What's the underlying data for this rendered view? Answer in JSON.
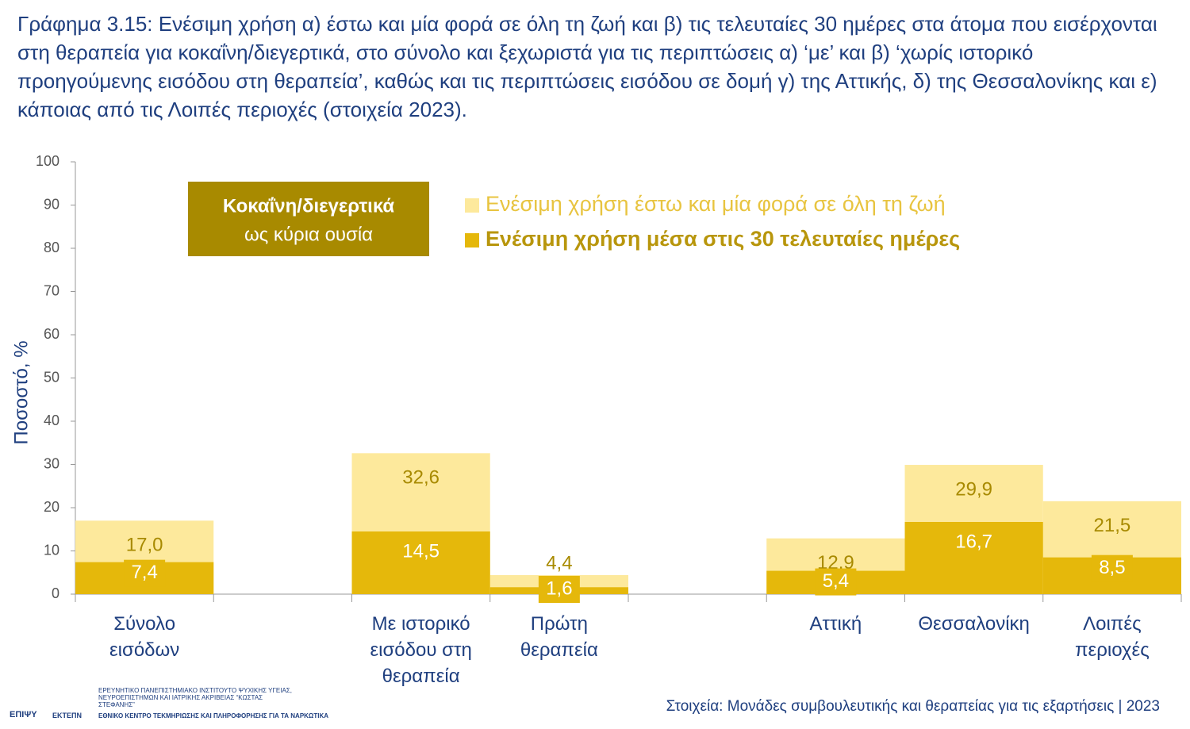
{
  "chart_data": {
    "type": "bar",
    "title": "Γράφημα 3.15: Ενέσιμη χρήση α) έστω και μία φορά σε όλη τη ζωή και β) τις τελευταίες 30 ημέρες στα άτομα που εισέρχονται στη θεραπεία για κοκαΐνη/διεγερτικά, στο σύνολο και ξεχωριστά για τις περιπτώσεις α) ‘με’ και β) ‘χωρίς ιστορικό προηγούμενης εισόδου στη θεραπεία’, καθώς και τις περιπτώσεις εισόδου σε δομή γ) της Αττικής, δ) της Θεσσαλονίκης και ε) κάποιας από τις Λοιπές περιοχές (στοιχεία 2023).",
    "ylabel": "Ποσοστό, %",
    "annotation": {
      "title": "Κοκαΐνη/διεγερτικά",
      "subtitle": "ως κύρια ουσία"
    },
    "categories": [
      "Σύνολο εισόδων",
      null,
      "Με ιστορικό εισόδου στη θεραπεία",
      "Πρώτη θεραπεία",
      null,
      "Αττική",
      "Θεσσαλονίκη",
      "Λοιπές περιοχές"
    ],
    "series": [
      {
        "name": "Ενέσιμη χρήση έστω και μία φορά σε όλη τη ζωή",
        "color": "#fde99c",
        "label_color": "#a88a00",
        "values": [
          17.0,
          null,
          32.6,
          4.4,
          null,
          12.9,
          29.9,
          21.5
        ],
        "value_labels": [
          "17,0",
          null,
          "32,6",
          "4,4",
          null,
          "12,9",
          "29,9",
          "21,5"
        ]
      },
      {
        "name": "Ενέσιμη χρήση μέσα στις 30 τελευταίες ημέρες",
        "color": "#e5b80b",
        "label_color": "#ffffff",
        "values": [
          7.4,
          null,
          14.5,
          1.6,
          null,
          5.4,
          16.7,
          8.5
        ],
        "value_labels": [
          "7,4",
          null,
          "14,5",
          "1,6",
          null,
          "5,4",
          "16,7",
          "8,5"
        ]
      }
    ],
    "ylim": [
      0,
      100
    ],
    "yticks": [
      0,
      10,
      20,
      30,
      40,
      50,
      60,
      70,
      80,
      90,
      100
    ],
    "grid": false,
    "source": "Στοιχεία: Μονάδες συμβουλευτικής και θεραπείας για τις εξαρτήσεις | 2023"
  },
  "footer": {
    "logo1": "ΕΠΙΨΥ",
    "logo2": "ΕΚΤΕΠΝ",
    "institute": "ΕΡΕΥΝΗΤΙΚΟ ΠΑΝΕΠΙΣΤΗΜΙΑΚΟ ΙΝΣΤΙΤΟΥΤΟ ΨΥΧΙΚΗΣ ΥΓΕΙΑΣ, ΝΕΥΡΟΕΠΙΣΤΗΜΩΝ ΚΑΙ ΙΑΤΡΙΚΗΣ ΑΚΡΙΒΕΙΑΣ “ΚΩΣΤΑΣ ΣΤΕΦΑΝΗΣ”",
    "centre": "ΕΘΝΙΚΟ ΚΕΝΤΡΟ ΤΕΚΜΗΡΙΩΣΗΣ ΚΑΙ ΠΛΗΡΟΦΟΡΗΣΗΣ ΓΙΑ ΤΑ ΝΑΡΚΩΤΙΚΑ"
  }
}
